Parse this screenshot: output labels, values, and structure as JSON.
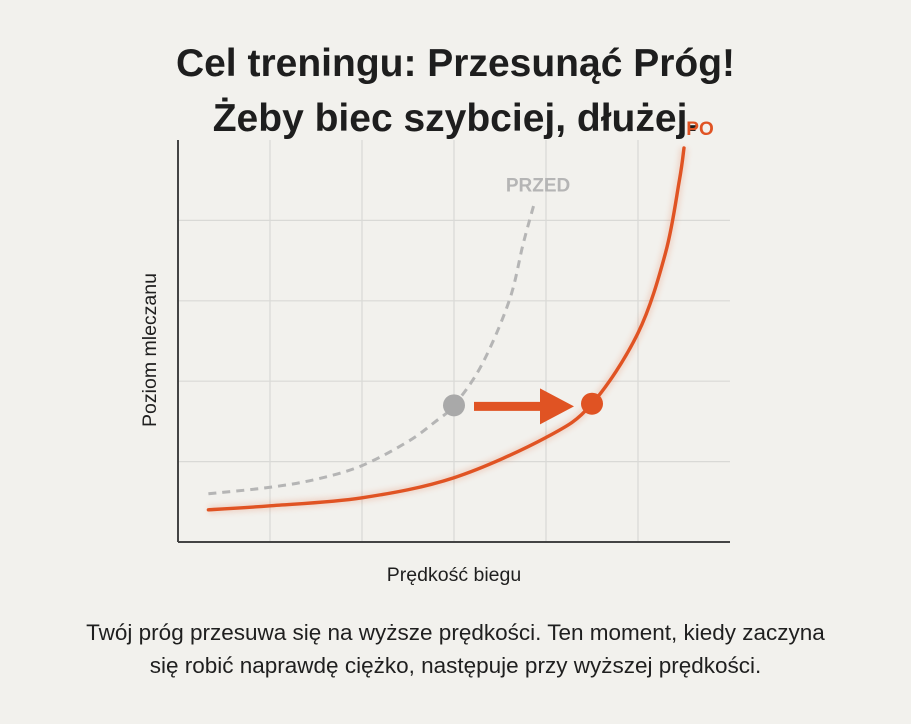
{
  "heading": {
    "line1": "Cel treningu: Przesunąć Próg!",
    "line2": "Żeby biec szybciej, dłużej."
  },
  "caption": {
    "line1": "Twój próg przesuwa się na wyższe prędkości. Ten moment, kiedy zaczyna",
    "line2": "się robić naprawdę ciężko, następuje przy wyższej prędkości."
  },
  "colors": {
    "before": "#b5b5b5",
    "after": "#e05323",
    "axis": "#444444",
    "grid": "#d9d9d6"
  },
  "chart_data": {
    "type": "line",
    "xlabel": "Prędkość biegu",
    "ylabel": "Poziom mleczanu",
    "xlim": [
      0,
      6
    ],
    "ylim": [
      0,
      5
    ],
    "grid": true,
    "x_ticks_shown": false,
    "y_ticks_shown": false,
    "series": [
      {
        "name": "PRZED",
        "style": "dashed",
        "color": "#b5b5b5",
        "points": [
          [
            0.33,
            0.6
          ],
          [
            1.0,
            0.68
          ],
          [
            1.5,
            0.78
          ],
          [
            2.0,
            0.95
          ],
          [
            2.5,
            1.25
          ],
          [
            2.8,
            1.5
          ],
          [
            3.0,
            1.7
          ],
          [
            3.3,
            2.2
          ],
          [
            3.6,
            3.0
          ],
          [
            3.75,
            3.7
          ],
          [
            3.87,
            4.2
          ]
        ]
      },
      {
        "name": "PO",
        "style": "solid",
        "color": "#e05323",
        "points": [
          [
            0.33,
            0.4
          ],
          [
            1.0,
            0.45
          ],
          [
            2.0,
            0.55
          ],
          [
            3.0,
            0.8
          ],
          [
            4.0,
            1.3
          ],
          [
            4.5,
            1.72
          ],
          [
            5.0,
            2.6
          ],
          [
            5.3,
            3.6
          ],
          [
            5.45,
            4.5
          ],
          [
            5.5,
            4.9
          ]
        ]
      }
    ],
    "highlight_points": [
      {
        "series": "PRZED",
        "x": 3.0,
        "y": 1.7
      },
      {
        "series": "PO",
        "x": 4.5,
        "y": 1.72
      }
    ],
    "annotation": "arrow from PRZED point to PO point"
  }
}
